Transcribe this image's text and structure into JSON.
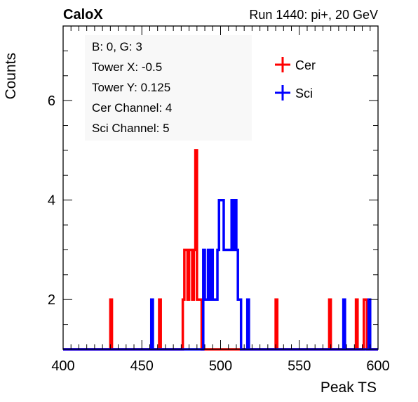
{
  "header": {
    "left": "CaloX",
    "right": "Run 1440: pi+, 20 GeV"
  },
  "info_lines": [
    "B: 0, G: 3",
    "Tower X: -0.5",
    "Tower Y: 0.125",
    "Cer Channel: 4",
    "Sci Channel: 5"
  ],
  "colors": {
    "cer": "#ff0000",
    "sci": "#0000ff"
  },
  "chart_data": {
    "type": "line",
    "subtype": "step-histogram",
    "title": "",
    "xlabel": "Peak TS",
    "ylabel": "Counts",
    "xlim": [
      400,
      600
    ],
    "ylim": [
      1,
      7.5
    ],
    "baseline": 1,
    "bin_width": 1,
    "x_ticks": [
      400,
      450,
      500,
      550,
      600
    ],
    "y_ticks": [
      2,
      4,
      6
    ],
    "grid": false,
    "legend_position": "top-right",
    "series": [
      {
        "name": "Cer",
        "color": "#ff0000",
        "bins": [
          [
            430,
            2
          ],
          [
            461,
            2
          ],
          [
            476,
            2
          ],
          [
            477,
            3
          ],
          [
            478,
            3
          ],
          [
            479,
            2
          ],
          [
            480,
            3
          ],
          [
            481,
            3
          ],
          [
            482,
            2
          ],
          [
            483,
            3
          ],
          [
            484,
            5
          ],
          [
            485,
            2
          ],
          [
            486,
            2
          ],
          [
            487,
            2
          ],
          [
            500,
            1
          ],
          [
            510,
            1
          ],
          [
            535,
            2
          ],
          [
            569,
            2
          ],
          [
            586,
            2
          ],
          [
            591,
            2
          ],
          [
            592,
            2
          ]
        ]
      },
      {
        "name": "Sci",
        "color": "#0000ff",
        "bins": [
          [
            456,
            2
          ],
          [
            489,
            3
          ],
          [
            490,
            2
          ],
          [
            491,
            2
          ],
          [
            492,
            3
          ],
          [
            493,
            2
          ],
          [
            494,
            3
          ],
          [
            495,
            2
          ],
          [
            496,
            2
          ],
          [
            497,
            2
          ],
          [
            498,
            3
          ],
          [
            499,
            4
          ],
          [
            500,
            4
          ],
          [
            501,
            4
          ],
          [
            502,
            3
          ],
          [
            503,
            3
          ],
          [
            504,
            3
          ],
          [
            505,
            3
          ],
          [
            506,
            3
          ],
          [
            507,
            4
          ],
          [
            508,
            3
          ],
          [
            509,
            4
          ],
          [
            510,
            3
          ],
          [
            511,
            2
          ],
          [
            512,
            2
          ],
          [
            517,
            2
          ],
          [
            578,
            2
          ],
          [
            594,
            2
          ]
        ]
      }
    ]
  }
}
